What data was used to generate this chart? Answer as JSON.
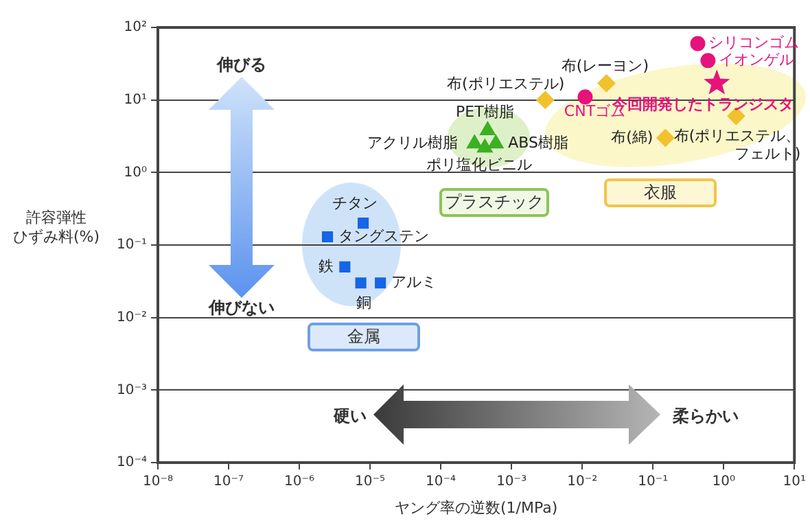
{
  "chart_data": {
    "type": "scatter",
    "xlabel": "ヤング率の逆数(1/MPa)",
    "ylabel": "許容弾性ひずみ料(%)",
    "log": "xy",
    "grid": "y",
    "xlim": [
      1e-08,
      10
    ],
    "ylim": [
      0.0001,
      100
    ],
    "xticks": [
      {
        "value": 1e-08,
        "label": "10⁻⁸"
      },
      {
        "value": 1e-07,
        "label": "10⁻⁷"
      },
      {
        "value": 1e-06,
        "label": "10⁻⁶"
      },
      {
        "value": 1e-05,
        "label": "10⁻⁵"
      },
      {
        "value": 0.0001,
        "label": "10⁻⁴"
      },
      {
        "value": 0.001,
        "label": "10⁻³"
      },
      {
        "value": 0.01,
        "label": "10⁻²"
      },
      {
        "value": 0.1,
        "label": "10⁻¹"
      },
      {
        "value": 1,
        "label": "10⁰"
      },
      {
        "value": 10,
        "label": "10¹"
      }
    ],
    "yticks": [
      {
        "value": 0.0001,
        "label": "10⁻⁴"
      },
      {
        "value": 0.001,
        "label": "10⁻³"
      },
      {
        "value": 0.01,
        "label": "10⁻²"
      },
      {
        "value": 0.1,
        "label": "10⁻¹"
      },
      {
        "value": 1,
        "label": "10⁰"
      },
      {
        "value": 10,
        "label": "10¹"
      },
      {
        "value": 100,
        "label": "10²"
      }
    ],
    "series": [
      {
        "color": "#1565e6",
        "marker": "square",
        "x": [
          8e-06,
          2.5e-06,
          4.4e-06,
          7.4e-06,
          1.4e-05
        ],
        "values": [
          0.2,
          0.13,
          0.05,
          0.03,
          0.03
        ]
      },
      {
        "color": "#3cb023",
        "marker": "triangle",
        "x": [
          0.00046,
          0.0003,
          0.0006,
          0.00042
        ],
        "values": [
          3.8,
          2.5,
          2.5,
          2.2
        ]
      },
      {
        "color": "#f2c12e",
        "marker": "diamond",
        "x": [
          0.003,
          0.022,
          0.15,
          1.5
        ],
        "values": [
          10,
          17,
          3,
          6
        ]
      },
      {
        "color": "#e6137d",
        "marker": "circle",
        "x": [
          0.011,
          0.43,
          0.6
        ],
        "values": [
          11,
          60,
          35
        ]
      },
      {
        "color": "#e6137d",
        "marker": "star",
        "x": [
          0.8
        ],
        "values": [
          17
        ]
      }
    ],
    "annotations": [
      {
        "text": "チタン",
        "x": 8e-06,
        "y": 0.2
      },
      {
        "text": "タングステン",
        "x": 2.5e-06,
        "y": 0.13
      },
      {
        "text": "鉄",
        "x": 4.4e-06,
        "y": 0.05
      },
      {
        "text": "銅",
        "x": 7.4e-06,
        "y": 0.03
      },
      {
        "text": "アルミ",
        "x": 1.4e-05,
        "y": 0.03
      },
      {
        "text": "PET樹脂",
        "x": 0.00046,
        "y": 3.8
      },
      {
        "text": "アクリル樹脂",
        "x": 0.0003,
        "y": 2.5
      },
      {
        "text": "ABS樹脂",
        "x": 0.0006,
        "y": 2.5
      },
      {
        "text": "ポリ塩化ビニル",
        "x": 0.00042,
        "y": 2.2
      },
      {
        "text": "布(ポリエステル)",
        "x": 0.003,
        "y": 10
      },
      {
        "text": "布(レーヨン)",
        "x": 0.022,
        "y": 17
      },
      {
        "text": "CNTゴム",
        "x": 0.011,
        "y": 11
      },
      {
        "text": "今回開発したトランジスタ",
        "x": 0.8,
        "y": 17
      },
      {
        "text": "布(綿)",
        "x": 0.15,
        "y": 3
      },
      {
        "text": "布(ポリエステル、フェルト)",
        "x": 1.5,
        "y": 6
      },
      {
        "text": "シリコンゴム",
        "x": 0.43,
        "y": 60
      },
      {
        "text": "イオンゲル",
        "x": 0.6,
        "y": 35
      },
      "伸びる",
      "伸びない",
      "硬い",
      "柔らかい",
      "金属",
      "プラスチック",
      "衣服"
    ]
  }
}
